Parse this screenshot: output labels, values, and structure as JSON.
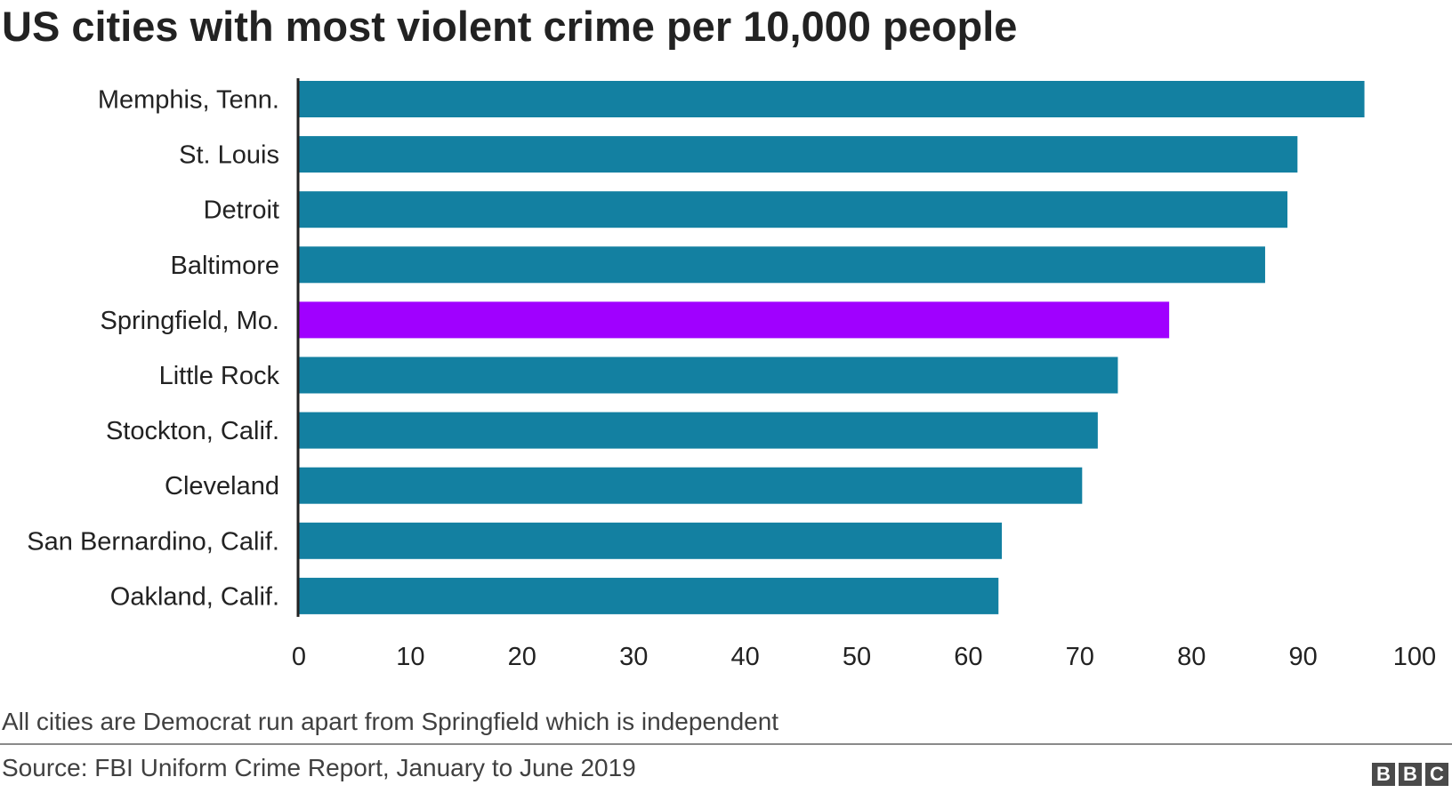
{
  "chart_data": {
    "type": "bar",
    "orientation": "horizontal",
    "title": "US cities with most violent crime per 10,000 people",
    "categories": [
      "Memphis, Tenn.",
      "St. Louis",
      "Detroit",
      "Baltimore",
      "Springfield, Mo.",
      "Little Rock",
      "Stockton, Calif.",
      "Cleveland",
      "San Bernardino, Calif.",
      "Oakland, Calif."
    ],
    "values": [
      95.5,
      89.5,
      88.6,
      86.6,
      78,
      73.4,
      71.6,
      70.2,
      63,
      62.7
    ],
    "highlight_index": 4,
    "xlim": [
      0,
      100
    ],
    "xticks": [
      0,
      10,
      20,
      30,
      40,
      50,
      60,
      70,
      80,
      90,
      100
    ],
    "xlabel": "",
    "ylabel": "",
    "grid": false,
    "colors": {
      "bar": "#1380A1",
      "highlight": "#A000FF",
      "axis": "#222222"
    }
  },
  "note": "All cities are Democrat run apart from Springfield which is independent",
  "source": "Source: FBI Uniform Crime Report, January to June 2019",
  "logo": [
    "B",
    "B",
    "C"
  ]
}
